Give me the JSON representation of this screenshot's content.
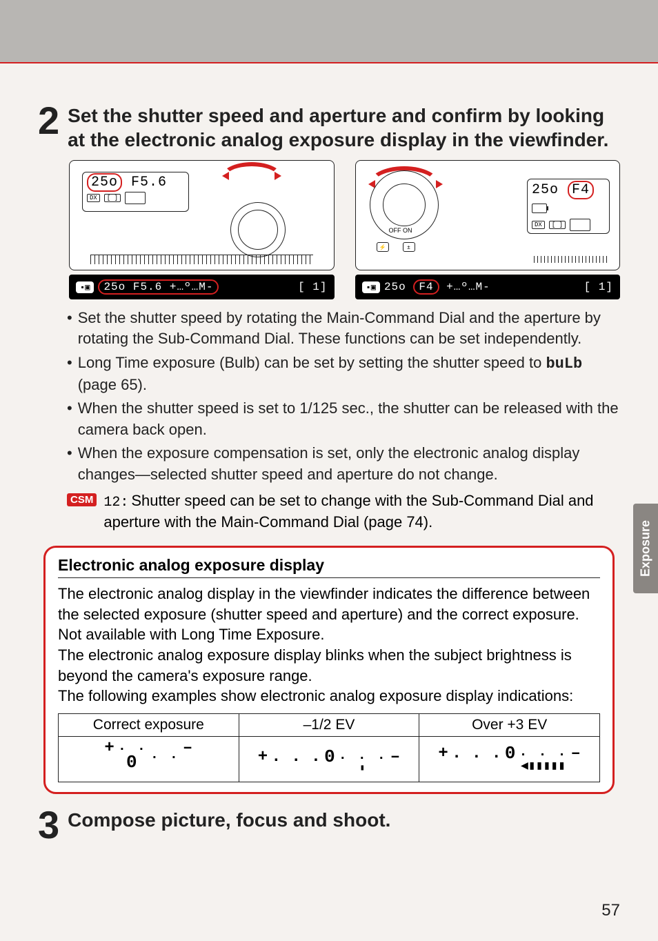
{
  "page_number": "57",
  "side_tab": "Exposure",
  "step2": {
    "number": "2",
    "title": "Set the shutter speed and aperture and confirm by looking at the electronic analog exposure display in the viewfinder."
  },
  "step3": {
    "number": "3",
    "title": "Compose picture, focus and shoot."
  },
  "diagram_left": {
    "lcd_shutter": "25o",
    "lcd_aperture": "F5.6",
    "bottom_strip": "25o F5.6 +…º…M-",
    "bottom_right": "[   1]"
  },
  "diagram_right": {
    "lcd_shutter": "25o",
    "lcd_aperture": "F4",
    "on_off": "OFF  ON",
    "bottom_strip": "25o F4 +…º…M-",
    "bottom_right": "[   1]"
  },
  "bullets": [
    "Set the shutter speed by rotating the Main-Command Dial and the aperture by rotating the Sub-Command Dial. These functions can be set independently.",
    "Long Time exposure (Bulb) can be set by setting the shutter speed to ",
    "When the shutter speed is set to 1/125 sec., the shutter can be released with the camera back open.",
    "When the exposure compensation is set, only the electronic analog display changes—selected shutter speed and aperture do not change."
  ],
  "bulb_code": "buLb",
  "bulb_suffix": " (page 65).",
  "csm": {
    "badge": "CSM",
    "code": "12:",
    "text": "Shutter speed can be set to change with the Sub-Command Dial and aperture with the Main-Command Dial (page 74)."
  },
  "info_box": {
    "title": "Electronic analog exposure display",
    "p1": "The electronic analog display in the viewfinder indicates the difference between the selected exposure (shutter speed and aperture) and the correct exposure. Not available with Long Time Exposure.",
    "p2": "The electronic analog exposure display blinks when the subject brightness is beyond the camera's exposure range.",
    "p3": "The following examples show electronic analog exposure display indications:",
    "headers": [
      "Correct exposure",
      "–1/2 EV",
      "Over +3 EV"
    ]
  },
  "colors": {
    "accent": "#d42020",
    "top_bar": "#b8b6b3",
    "side_tab_bg": "#8a8682",
    "page_bg": "#f5f2ef",
    "text": "#222222",
    "box_bg": "#ffffff"
  },
  "fonts": {
    "body_size_pt": 16,
    "title_size_pt": 21,
    "stepnum_size_pt": 42
  }
}
